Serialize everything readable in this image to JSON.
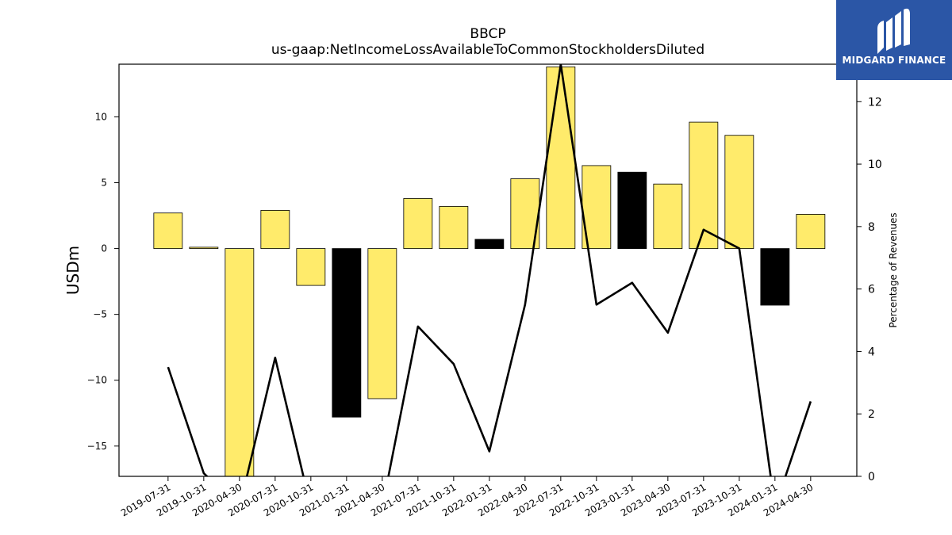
{
  "logo": {
    "text": "MIDGARD FINANCE",
    "icon": "midgard-logo-icon",
    "background": "#2b56a6"
  },
  "chart_data": {
    "type": "bar",
    "title": "BBCP",
    "subtitle": "us-gaap:NetIncomeLossAvailableToCommonStockholdersDiluted",
    "ylabel": "USDm",
    "y2label": "Percentage of Revenues",
    "categories": [
      "2019-07-31",
      "2019-10-31",
      "2020-04-30",
      "2020-07-31",
      "2020-10-31",
      "2021-01-31",
      "2021-04-30",
      "2021-07-31",
      "2021-10-31",
      "2022-01-31",
      "2022-04-30",
      "2022-07-31",
      "2022-10-31",
      "2023-01-31",
      "2023-04-30",
      "2023-07-31",
      "2023-10-31",
      "2024-01-31",
      "2024-04-30"
    ],
    "series": [
      {
        "type": "bar",
        "values": [
          2.7,
          0.1,
          -17.5,
          2.9,
          -2.8,
          -12.8,
          -11.4,
          3.8,
          3.2,
          0.7,
          5.3,
          13.8,
          6.3,
          5.8,
          4.9,
          9.6,
          8.6,
          -4.3,
          2.6
        ],
        "colors": [
          "#ffeb6b",
          "#ffeb6b",
          "#ffeb6b",
          "#ffeb6b",
          "#ffeb6b",
          "#000000",
          "#ffeb6b",
          "#ffeb6b",
          "#ffeb6b",
          "#000000",
          "#ffeb6b",
          "#ffeb6b",
          "#ffeb6b",
          "#000000",
          "#ffeb6b",
          "#ffeb6b",
          "#ffeb6b",
          "#000000",
          "#ffeb6b"
        ]
      },
      {
        "type": "line",
        "axis": "right",
        "color": "#000000",
        "values": [
          3.5,
          0.1,
          -1.0,
          3.8,
          -1.0,
          -1.0,
          -1.0,
          4.8,
          3.6,
          0.8,
          5.5,
          13.2,
          5.5,
          6.2,
          4.6,
          7.9,
          7.3,
          -1.0,
          2.4
        ]
      }
    ],
    "ylim": [
      -17.3,
      14.0
    ],
    "y2lim": [
      0,
      13.2
    ],
    "yticks": [
      -15,
      -10,
      -5,
      0,
      5,
      10
    ],
    "yticklabels": [
      "−15",
      "−10",
      "−5",
      "0",
      "5",
      "10"
    ],
    "y2ticks": [
      0,
      2,
      4,
      6,
      8,
      10,
      12
    ],
    "y2ticklabels": [
      "0",
      "2",
      "4",
      "6",
      "8",
      "10",
      "12"
    ],
    "grid": false,
    "legend": "none"
  }
}
